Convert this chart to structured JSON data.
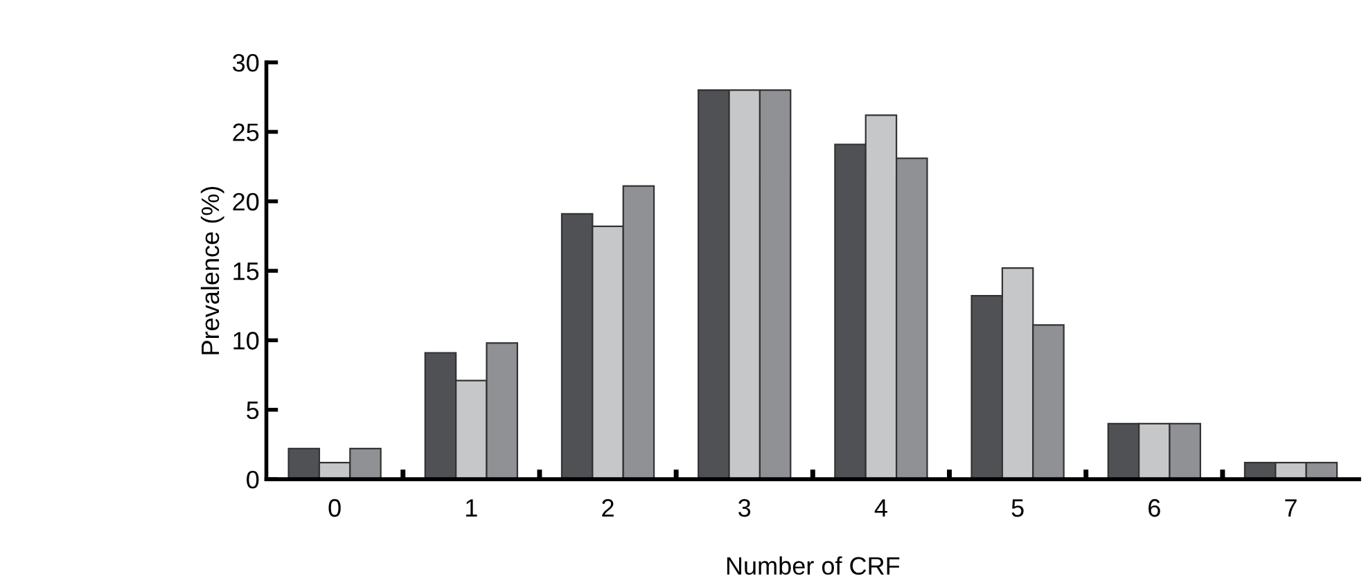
{
  "chart_data": {
    "type": "bar",
    "xlabel": "Number of CRF",
    "ylabel": "Prevalence (%)",
    "categories": [
      "0",
      "1",
      "2",
      "3",
      "4",
      "5",
      "6",
      "7"
    ],
    "series": [
      {
        "color": "#505155",
        "values": [
          2.2,
          9.1,
          19.1,
          28.0,
          24.1,
          13.2,
          4.0,
          1.2
        ]
      },
      {
        "color": "#c6c7c9",
        "values": [
          1.2,
          7.1,
          18.2,
          28.0,
          26.2,
          15.2,
          4.0,
          1.2
        ]
      },
      {
        "color": "#909194",
        "values": [
          2.2,
          9.8,
          21.1,
          28.0,
          23.1,
          11.1,
          4.0,
          1.2
        ]
      }
    ],
    "ylim": [
      0,
      30
    ],
    "yticks": [
      0,
      5,
      10,
      15,
      20,
      25,
      30
    ],
    "grid": false,
    "legend": false
  }
}
